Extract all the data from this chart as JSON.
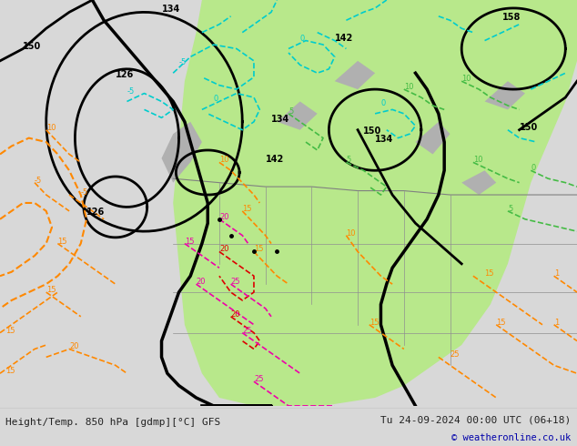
{
  "title_left": "Height/Temp. 850 hPa [gdmp][°C] GFS",
  "title_right": "Tu 24-09-2024 00:00 UTC (06+18)",
  "copyright": "© weatheronline.co.uk",
  "bg_color": "#d8d8d8",
  "map_bg_color": "#e8e8e8",
  "green_fill_color": "#b8e88b",
  "contour_color_black": "#000000",
  "contour_color_cyan": "#00cccc",
  "contour_color_green": "#44bb44",
  "contour_color_orange": "#ff8800",
  "contour_color_red": "#dd0000",
  "contour_color_magenta": "#ee00aa",
  "bottom_bar_color": "#ffffff",
  "text_color_dark": "#222222",
  "text_color_blue": "#0000aa",
  "figsize": [
    6.34,
    4.9
  ],
  "dpi": 100
}
